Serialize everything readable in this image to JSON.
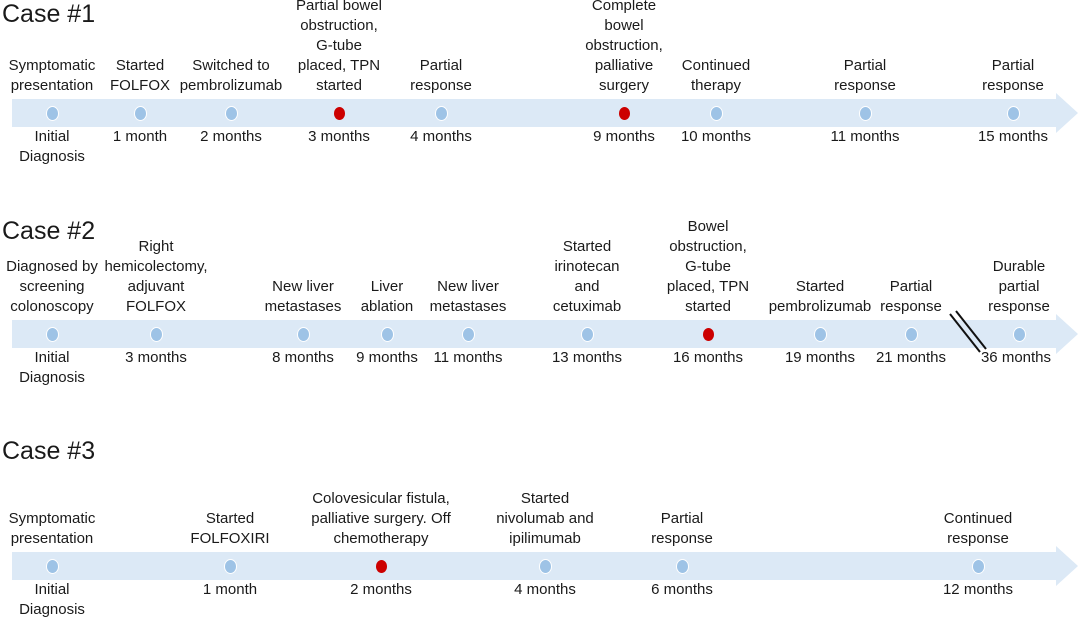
{
  "colors": {
    "timeline": "#dce9f6",
    "dot": "#9ec3e6",
    "dot_outline": "#ffffff",
    "complication": "#cc0000",
    "text": "#1a1a1a"
  },
  "cases": [
    {
      "title": "Case #1",
      "events": [
        {
          "label": "Symptomatic\npresentation",
          "time": "Initial\nDiagnosis",
          "kind": "normal"
        },
        {
          "label": "Started\nFOLFOX",
          "time": "1 month",
          "kind": "normal"
        },
        {
          "label": "Switched to\npembrolizumab",
          "time": "2 months",
          "kind": "normal"
        },
        {
          "label": "Partial bowel\nobstruction,\nG-tube\nplaced, TPN\nstarted",
          "time": "3 months",
          "kind": "complication"
        },
        {
          "label": "Partial\nresponse",
          "time": "4 months",
          "kind": "normal"
        },
        {
          "label": "Complete\nbowel\nobstruction,\npalliative\nsurgery",
          "time": "9 months",
          "kind": "complication"
        },
        {
          "label": "Continued\ntherapy",
          "time": "10 months",
          "kind": "normal"
        },
        {
          "label": "Partial\nresponse",
          "time": "11 months",
          "kind": "normal"
        },
        {
          "label": "Partial\nresponse",
          "time": "15 months",
          "kind": "normal"
        }
      ]
    },
    {
      "title": "Case #2",
      "events": [
        {
          "label": "Diagnosed by\nscreening\ncolonoscopy",
          "time": "Initial\nDiagnosis",
          "kind": "normal"
        },
        {
          "label": "Right\nhemicolectomy,\nadjuvant\nFOLFOX",
          "time": "3 months",
          "kind": "normal"
        },
        {
          "label": "New liver\nmetastases",
          "time": "8 months",
          "kind": "normal"
        },
        {
          "label": "Liver\nablation",
          "time": "9 months",
          "kind": "normal"
        },
        {
          "label": "New liver\nmetastases",
          "time": "11 months",
          "kind": "normal"
        },
        {
          "label": "Started\nirinotecan\nand\ncetuximab",
          "time": "13 months",
          "kind": "normal"
        },
        {
          "label": "Bowel\nobstruction,\nG-tube\nplaced, TPN\nstarted",
          "time": "16 months",
          "kind": "complication"
        },
        {
          "label": "Started\npembrolizumab",
          "time": "19 months",
          "kind": "normal"
        },
        {
          "label": "Partial\nresponse",
          "time": "21 months",
          "kind": "normal"
        },
        {
          "label": "Durable\npartial\nresponse",
          "time": "36 months",
          "kind": "normal"
        }
      ]
    },
    {
      "title": "Case #3",
      "events": [
        {
          "label": "Symptomatic\npresentation",
          "time": "Initial\nDiagnosis",
          "kind": "normal"
        },
        {
          "label": "Started\nFOLFOXIRI",
          "time": "1 month",
          "kind": "normal"
        },
        {
          "label": "Colovesicular fistula,\npalliative surgery. Off\nchemotherapy",
          "time": "2 months",
          "kind": "complication"
        },
        {
          "label": "Started\nnivolumab and\nipilimumab",
          "time": "4 months",
          "kind": "normal"
        },
        {
          "label": "Partial\nresponse",
          "time": "6 months",
          "kind": "normal"
        },
        {
          "label": "Continued\nresponse",
          "time": "12 months",
          "kind": "normal"
        }
      ]
    }
  ]
}
